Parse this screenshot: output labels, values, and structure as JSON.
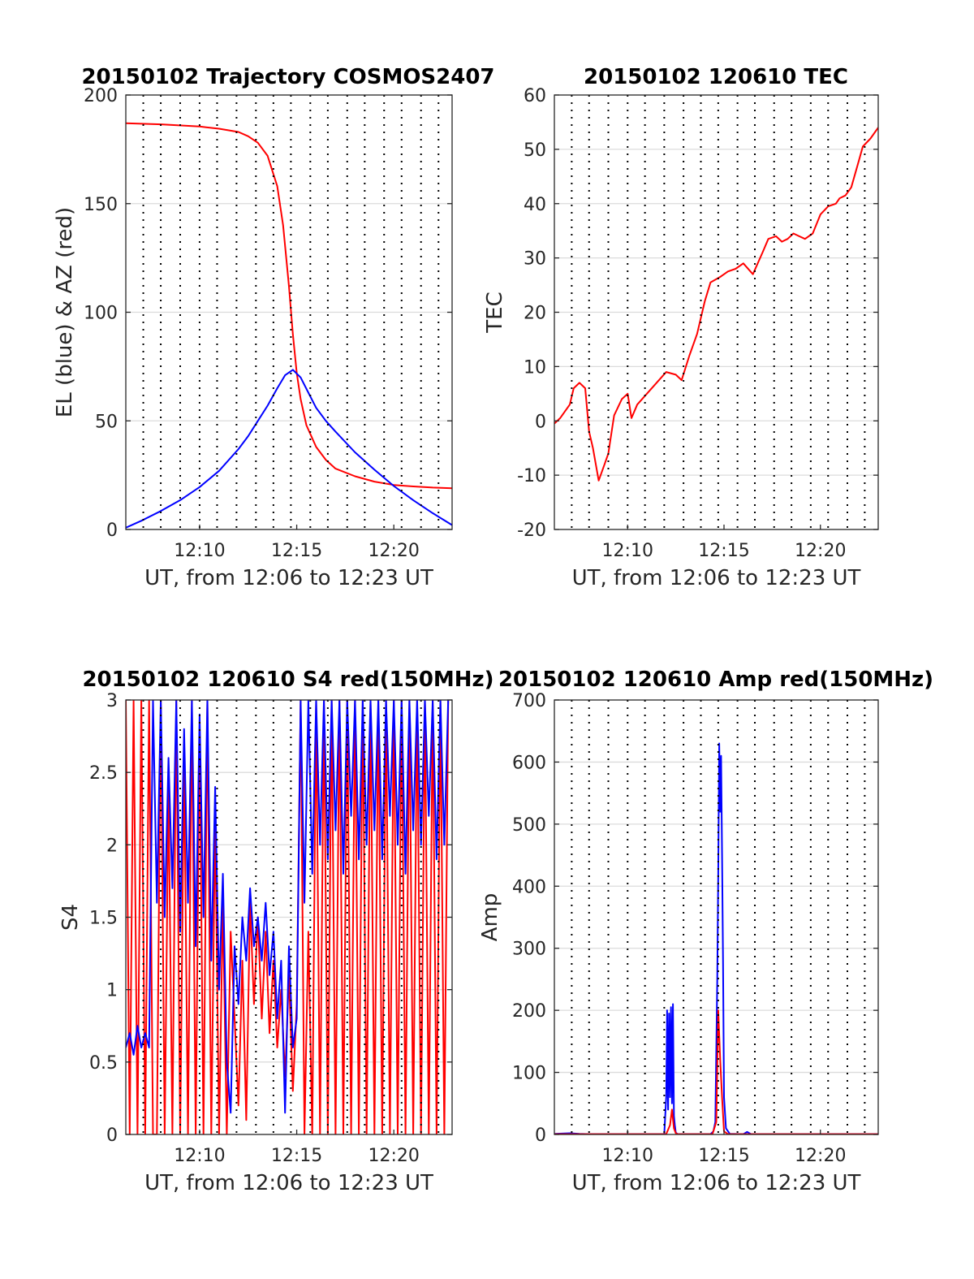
{
  "colors": {
    "red": "#ff0000",
    "blue": "#0000ff"
  },
  "chart_data": [
    {
      "type": "line",
      "title": "20150102 Trajectory COSMOS2407",
      "xlabel": "UT, from 12:06 to 12:23 UT",
      "ylabel": "EL (blue) & AZ (red)",
      "xlim": [
        6.2,
        23
      ],
      "ylim": [
        0,
        200
      ],
      "xticks": [
        10,
        15,
        20
      ],
      "xtick_labels": [
        "12:10",
        "12:15",
        "12:20"
      ],
      "yticks": [
        0,
        50,
        100,
        150,
        200
      ],
      "ytick_labels": [
        "0",
        "50",
        "100",
        "150",
        "200"
      ],
      "vlines": [
        7.1,
        8.0,
        9.0,
        10.0,
        10.9,
        11.9,
        12.9,
        13.8,
        14.7,
        15.7,
        16.6,
        17.6,
        18.5,
        19.5,
        20.4,
        21.4,
        22.3
      ],
      "grid": "horizontal",
      "series": [
        {
          "color": "red",
          "x": [
            6.2,
            8,
            10,
            11,
            12,
            12.5,
            13,
            13.5,
            14,
            14.3,
            14.6,
            14.8,
            15,
            15.2,
            15.5,
            16,
            16.5,
            17,
            18,
            19,
            20,
            21,
            22,
            23
          ],
          "y": [
            187,
            186.5,
            185.5,
            184.5,
            183,
            181,
            178,
            172,
            158,
            140,
            112,
            90,
            72,
            60,
            48,
            38,
            32,
            28,
            24.5,
            22,
            20.5,
            19.8,
            19.3,
            19
          ]
        },
        {
          "color": "blue",
          "x": [
            6.2,
            7,
            8,
            9,
            10,
            11,
            12,
            12.5,
            13,
            13.5,
            14,
            14.4,
            14.8,
            15.2,
            15.6,
            16,
            16.5,
            17,
            18,
            19,
            20,
            21,
            22,
            23
          ],
          "y": [
            0.8,
            4,
            8.5,
            13.5,
            19.5,
            27,
            37,
            43,
            50,
            57,
            65,
            71,
            73.5,
            70,
            63,
            56,
            50,
            45,
            35.5,
            27.5,
            20,
            13.5,
            7.5,
            2
          ]
        }
      ]
    },
    {
      "type": "line",
      "title": "20150102 120610 TEC",
      "xlabel": "UT, from 12:06 to 12:23 UT",
      "ylabel": "TEC",
      "xlim": [
        6.2,
        23
      ],
      "ylim": [
        -20,
        60
      ],
      "xticks": [
        10,
        15,
        20
      ],
      "xtick_labels": [
        "12:10",
        "12:15",
        "12:20"
      ],
      "yticks": [
        -20,
        -10,
        0,
        10,
        20,
        30,
        40,
        50,
        60
      ],
      "ytick_labels": [
        "-20",
        "-10",
        "0",
        "10",
        "20",
        "30",
        "40",
        "50",
        "60"
      ],
      "vlines": [
        7.1,
        8.0,
        9.0,
        10.0,
        10.9,
        11.9,
        12.9,
        13.8,
        14.7,
        15.7,
        16.6,
        17.6,
        18.5,
        19.5,
        20.4,
        21.4,
        22.3
      ],
      "grid": "horizontal",
      "series": [
        {
          "color": "red",
          "x": [
            6.2,
            6.5,
            7,
            7.2,
            7.5,
            7.8,
            8.0,
            8.2,
            8.5,
            8.8,
            9.0,
            9.3,
            9.7,
            10.0,
            10.2,
            10.5,
            11,
            11.5,
            12,
            12.5,
            12.8,
            13.2,
            13.6,
            14,
            14.3,
            14.8,
            15.2,
            15.6,
            16,
            16.5,
            17,
            17.3,
            17.7,
            18,
            18.3,
            18.6,
            18.9,
            19.2,
            19.6,
            20,
            20.4,
            20.8,
            21,
            21.3,
            21.6,
            22,
            22.2,
            22.6,
            23
          ],
          "y": [
            -0.5,
            0.5,
            3,
            6,
            7,
            6,
            -2,
            -5,
            -11,
            -8,
            -6,
            1,
            4,
            5,
            0.5,
            3,
            5,
            7,
            9,
            8.5,
            7.5,
            12,
            16,
            22,
            25.5,
            26.5,
            27.5,
            28,
            29,
            27,
            31,
            33.5,
            34,
            33,
            33.5,
            34.5,
            34,
            33.5,
            34.5,
            38,
            39.5,
            40,
            41,
            41.5,
            43,
            48,
            50.5,
            52,
            54
          ]
        }
      ]
    },
    {
      "type": "line",
      "title": "20150102 120610 S4 red(150MHz)",
      "xlabel": "UT, from 12:06 to 12:23 UT",
      "ylabel": "S4",
      "xlim": [
        6.2,
        23
      ],
      "ylim": [
        0,
        3
      ],
      "xticks": [
        10,
        15,
        20
      ],
      "xtick_labels": [
        "12:10",
        "12:15",
        "12:20"
      ],
      "yticks": [
        0,
        0.5,
        1,
        1.5,
        2,
        2.5,
        3
      ],
      "ytick_labels": [
        "0",
        "0.5",
        "1",
        "1.5",
        "2",
        "2.5",
        "3"
      ],
      "vlines": [
        7.1,
        8.0,
        9.0,
        10.0,
        10.9,
        11.9,
        12.9,
        13.8,
        14.7,
        15.7,
        16.6,
        17.6,
        18.5,
        19.5,
        20.4,
        21.4,
        22.3
      ],
      "grid": "horizontal",
      "series": [
        {
          "color": "red",
          "x": [
            6.2,
            6.4,
            6.6,
            6.8,
            7.0,
            7.2,
            7.4,
            7.6,
            7.8,
            8.0,
            8.2,
            8.4,
            8.6,
            8.8,
            9.0,
            9.2,
            9.4,
            9.6,
            9.8,
            10.0,
            10.2,
            10.4,
            10.6,
            10.8,
            11.0,
            11.2,
            11.4,
            11.6,
            11.8,
            12.0,
            12.2,
            12.4,
            12.6,
            12.8,
            13.0,
            13.2,
            13.4,
            13.6,
            13.8,
            14.0,
            14.2,
            14.4,
            14.6,
            14.8,
            15.0,
            15.2,
            15.4,
            15.6,
            15.8,
            16.0,
            16.2,
            16.4,
            16.6,
            16.8,
            17.0,
            17.2,
            17.4,
            17.6,
            17.8,
            18.0,
            18.2,
            18.4,
            18.6,
            18.8,
            19.0,
            19.2,
            19.4,
            19.6,
            19.8,
            20.0,
            20.2,
            20.4,
            20.6,
            20.8,
            21.0,
            21.2,
            21.4,
            21.6,
            21.8,
            22.0,
            22.2,
            22.4,
            22.6,
            22.8
          ],
          "y": [
            3,
            0,
            3,
            0,
            3,
            0,
            3,
            0,
            0,
            3,
            0,
            2.4,
            0,
            3,
            0,
            2.6,
            0,
            3,
            0,
            2.8,
            0,
            3,
            0,
            2.2,
            0,
            1.6,
            0,
            1.4,
            0.8,
            0.2,
            1.2,
            0.1,
            1.6,
            0.9,
            1.5,
            0.8,
            1.4,
            0.7,
            1.2,
            0.6,
            1.0,
            0.4,
            1.1,
            0.3,
            0.9,
            3,
            0,
            1.4,
            0,
            3,
            0,
            3,
            0,
            3,
            0,
            3,
            0,
            3,
            0,
            3,
            0,
            3,
            0,
            3,
            0,
            3,
            0,
            3,
            0,
            3,
            0,
            3,
            0,
            3,
            0,
            3,
            0,
            3,
            0,
            3,
            0,
            3,
            0,
            3
          ]
        },
        {
          "color": "blue",
          "x": [
            6.2,
            6.4,
            6.6,
            6.8,
            7.0,
            7.2,
            7.4,
            7.6,
            7.8,
            8.0,
            8.2,
            8.4,
            8.6,
            8.8,
            9.0,
            9.2,
            9.4,
            9.6,
            9.8,
            10.0,
            10.2,
            10.4,
            10.6,
            10.8,
            11.0,
            11.2,
            11.4,
            11.6,
            11.8,
            12.0,
            12.2,
            12.4,
            12.6,
            12.8,
            13.0,
            13.2,
            13.4,
            13.6,
            13.8,
            14.0,
            14.2,
            14.4,
            14.6,
            14.8,
            15.0,
            15.2,
            15.4,
            15.6,
            15.8,
            16.0,
            16.2,
            16.4,
            16.6,
            16.8,
            17.0,
            17.2,
            17.4,
            17.6,
            17.8,
            18.0,
            18.2,
            18.4,
            18.6,
            18.8,
            19.0,
            19.2,
            19.4,
            19.6,
            19.8,
            20.0,
            20.2,
            20.4,
            20.6,
            20.8,
            21.0,
            21.2,
            21.4,
            21.6,
            21.8,
            22.0,
            22.2,
            22.4,
            22.6,
            22.8
          ],
          "y": [
            0.6,
            0.7,
            0.55,
            0.75,
            0.6,
            0.7,
            0.6,
            3,
            1.6,
            3,
            1.5,
            2.6,
            1.7,
            3,
            1.4,
            2.8,
            1.6,
            3,
            1.3,
            2.9,
            1.5,
            3,
            1.2,
            2.4,
            1.0,
            1.8,
            0.5,
            0.15,
            1.3,
            0.9,
            1.5,
            1.2,
            1.7,
            1.3,
            1.5,
            1.2,
            1.6,
            1.1,
            1.4,
            0.8,
            1.2,
            0.15,
            1.3,
            0.6,
            0.8,
            3,
            1.6,
            3,
            1.8,
            3,
            2.0,
            3,
            1.9,
            3,
            2.1,
            3,
            1.8,
            3,
            2.2,
            3,
            1.9,
            3,
            2.0,
            3,
            2.1,
            3,
            1.9,
            3,
            2.2,
            3,
            2.0,
            3,
            1.8,
            3,
            2.1,
            3,
            2.0,
            3,
            2.2,
            3,
            1.9,
            3,
            2.0,
            3
          ]
        }
      ]
    },
    {
      "type": "line",
      "title": "20150102 120610 Amp red(150MHz)",
      "xlabel": "UT, from 12:06 to 12:23 UT",
      "ylabel": "Amp",
      "xlim": [
        6.2,
        23
      ],
      "ylim": [
        0,
        700
      ],
      "xticks": [
        10,
        15,
        20
      ],
      "xtick_labels": [
        "12:10",
        "12:15",
        "12:20"
      ],
      "yticks": [
        0,
        100,
        200,
        300,
        400,
        500,
        600,
        700
      ],
      "ytick_labels": [
        "0",
        "100",
        "200",
        "300",
        "400",
        "500",
        "600",
        "700"
      ],
      "vlines": [
        7.1,
        8.0,
        9.0,
        10.0,
        10.9,
        11.9,
        12.9,
        13.8,
        14.7,
        15.7,
        16.6,
        17.6,
        18.5,
        19.5,
        20.4,
        21.4,
        22.3
      ],
      "grid": "horizontal",
      "series": [
        {
          "color": "blue",
          "x": [
            6.2,
            7.0,
            7.5,
            8.0,
            11.0,
            11.9,
            12.0,
            12.05,
            12.1,
            12.15,
            12.2,
            12.25,
            12.3,
            12.35,
            12.4,
            12.45,
            12.5,
            12.6,
            14.3,
            14.45,
            14.55,
            14.65,
            14.7,
            14.75,
            14.8,
            14.85,
            14.9,
            14.95,
            15.0,
            15.1,
            15.3,
            16.0,
            16.2,
            16.4,
            17.0,
            23
          ],
          "y": [
            1,
            2,
            1,
            0.5,
            0.5,
            0.5,
            60,
            200,
            40,
            195,
            60,
            205,
            50,
            210,
            30,
            15,
            3,
            0.5,
            0.5,
            5,
            20,
            250,
            420,
            630,
            520,
            610,
            450,
            280,
            60,
            10,
            1,
            0.5,
            4,
            0.5,
            0.5,
            0.5
          ]
        },
        {
          "color": "red",
          "x": [
            6.2,
            12.0,
            12.2,
            12.3,
            12.4,
            12.5,
            12.6,
            14.4,
            14.6,
            14.7,
            14.8,
            14.9,
            15.0,
            15.2,
            23
          ],
          "y": [
            0.5,
            0.5,
            15,
            40,
            10,
            2,
            0.5,
            0.5,
            20,
            200,
            120,
            60,
            5,
            0.5,
            0.5
          ]
        }
      ]
    }
  ]
}
